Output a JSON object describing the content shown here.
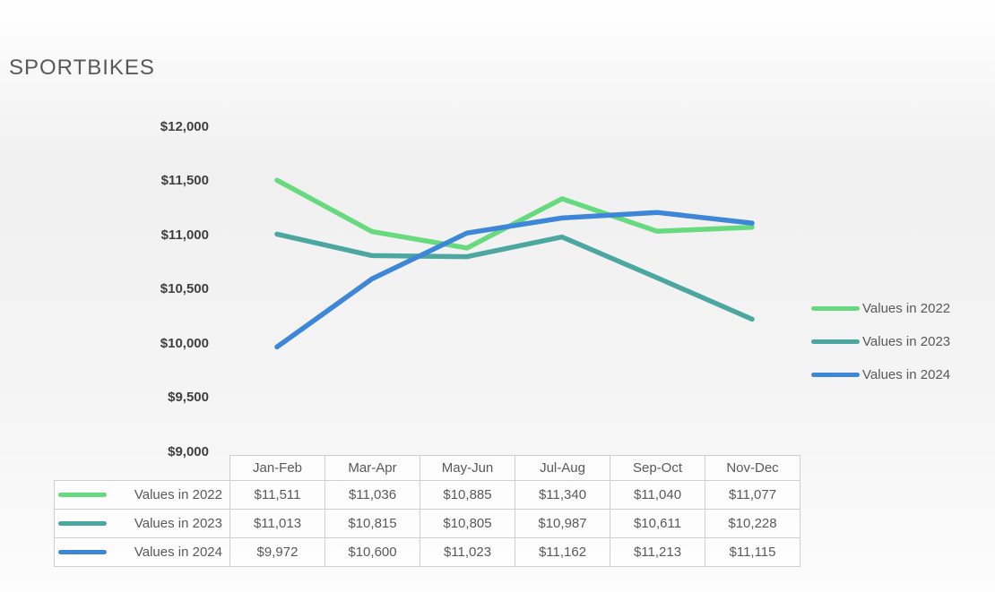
{
  "title": "SPORTBIKES",
  "chart_data": {
    "type": "line",
    "title": "SPORTBIKES",
    "categories": [
      "Jan-Feb",
      "Mar-Apr",
      "May-Jun",
      "Jul-Aug",
      "Sep-Oct",
      "Nov-Dec"
    ],
    "series": [
      {
        "name": "Values in 2022",
        "color": "#67D97E",
        "values": [
          11511,
          11036,
          10885,
          11340,
          11040,
          11077
        ],
        "display": [
          "$11,511",
          "$11,036",
          "$10,885",
          "$11,340",
          "$11,040",
          "$11,077"
        ]
      },
      {
        "name": "Values in 2023",
        "color": "#4BA79F",
        "values": [
          11013,
          10815,
          10805,
          10987,
          10611,
          10228
        ],
        "display": [
          "$11,013",
          "$10,815",
          "$10,805",
          "$10,987",
          "$10,611",
          "$10,228"
        ]
      },
      {
        "name": "Values in 2024",
        "color": "#3D86D8",
        "values": [
          9972,
          10600,
          11023,
          11162,
          11213,
          11115
        ],
        "display": [
          "$9,972",
          "$10,600",
          "$11,023",
          "$11,162",
          "$11,213",
          "$11,115"
        ]
      }
    ],
    "xlabel": "",
    "ylabel": "",
    "ylim": [
      9000,
      12000
    ],
    "ytick_step": 500,
    "yticks": [
      "$12,000",
      "$11,500",
      "$11,000",
      "$10,500",
      "$10,000",
      "$9,500",
      "$9,000"
    ],
    "grid": false,
    "legend_position": "right",
    "data_table_shown": true
  }
}
